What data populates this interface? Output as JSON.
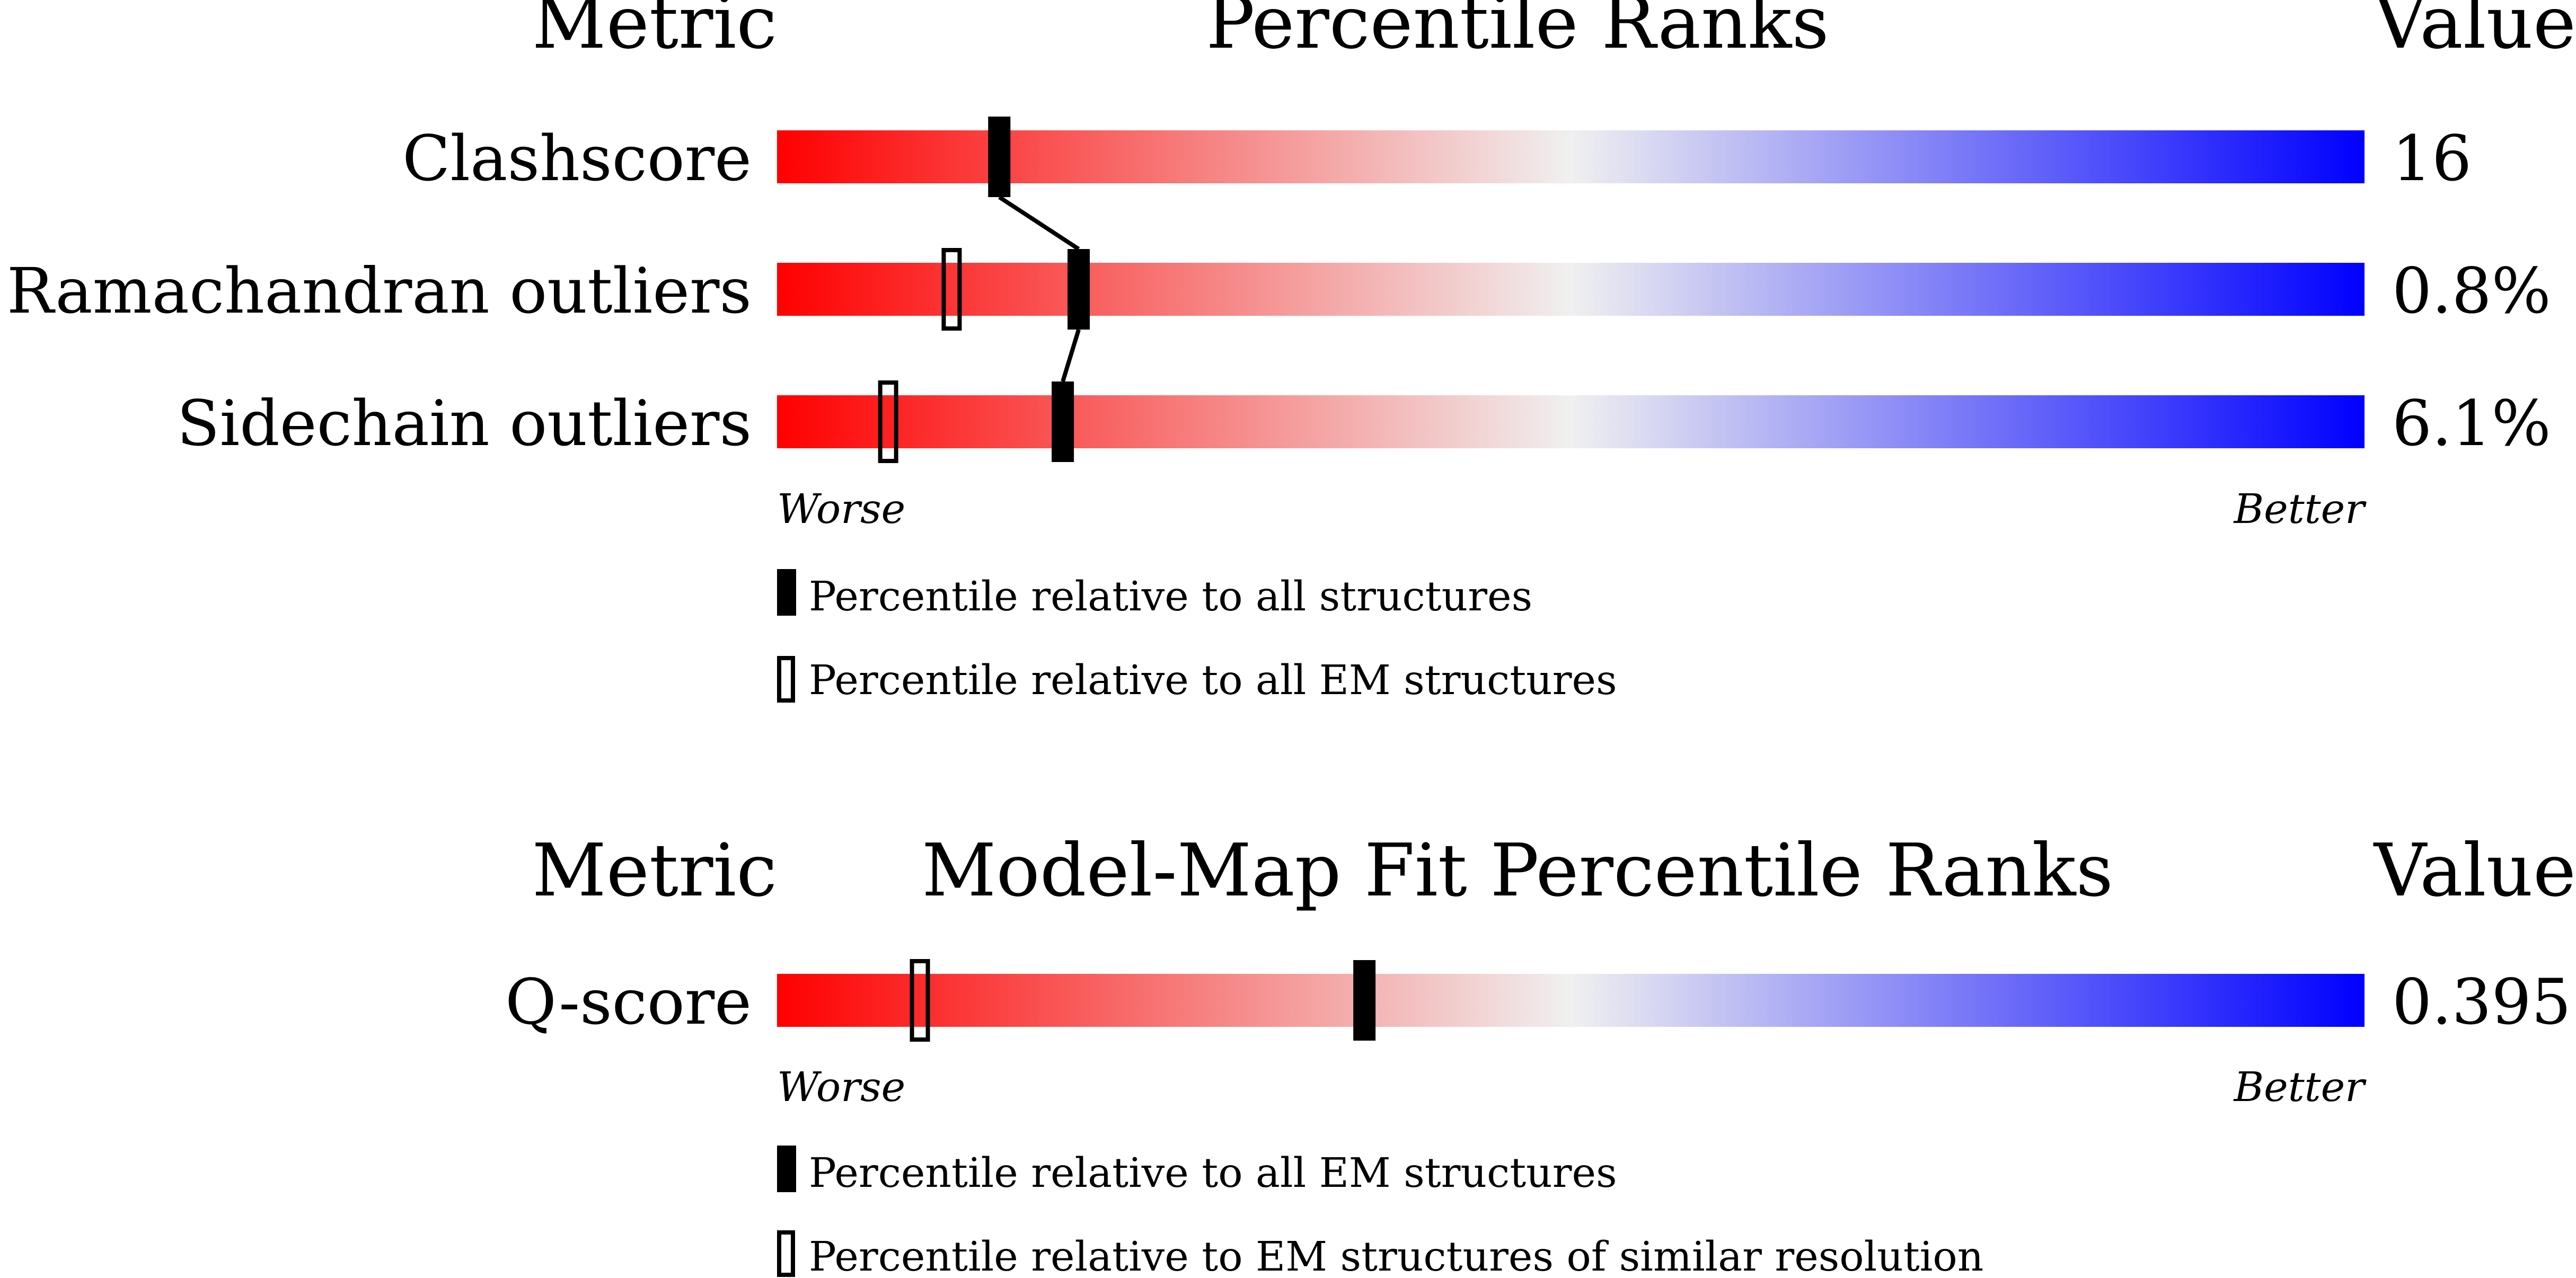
{
  "colors": {
    "worse": "#ff0000",
    "mid": "#f0f0f0",
    "better": "#0000ff",
    "marker": "#000000"
  },
  "chart_data": [
    {
      "type": "percentile-slider",
      "header": {
        "metric": "Metric",
        "title": "Percentile Ranks",
        "value": "Value"
      },
      "scale": {
        "min": 0,
        "max": 100,
        "low_label": "Worse",
        "high_label": "Better"
      },
      "rows": [
        {
          "metric": "Clashscore",
          "value": "16",
          "percentile_all": 14,
          "percentile_em": null
        },
        {
          "metric": "Ramachandran outliers",
          "value": "0.8%",
          "percentile_all": 19,
          "percentile_em": 11
        },
        {
          "metric": "Sidechain outliers",
          "value": "6.1%",
          "percentile_all": 18,
          "percentile_em": 7
        }
      ],
      "legend": [
        {
          "marker": "filled",
          "label": "Percentile relative to all structures"
        },
        {
          "marker": "open",
          "label": "Percentile relative to all EM structures"
        }
      ]
    },
    {
      "type": "percentile-slider",
      "header": {
        "metric": "Metric",
        "title": "Model-Map Fit Percentile Ranks",
        "value": "Value"
      },
      "scale": {
        "min": 0,
        "max": 100,
        "low_label": "Worse",
        "high_label": "Better"
      },
      "rows": [
        {
          "metric": "Q-score",
          "value": "0.395",
          "percentile_all": 37,
          "percentile_em": 9
        }
      ],
      "legend": [
        {
          "marker": "filled",
          "label": "Percentile relative to all EM structures"
        },
        {
          "marker": "open",
          "label": "Percentile relative to EM structures of similar resolution"
        }
      ]
    }
  ]
}
